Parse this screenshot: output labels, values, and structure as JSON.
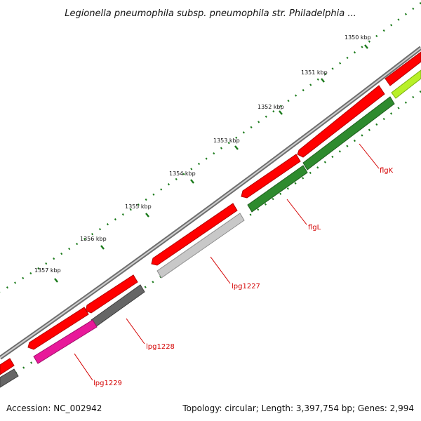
{
  "title": "Legionella pneumophila subsp. pneumophila str. Philadelphia ...",
  "footer": {
    "accession": "Accession: NC_002942",
    "summary": "Topology: circular; Length: 3,397,754 bp; Genes: 2,994"
  },
  "scale": {
    "unit": "kbp",
    "ticks": [
      "1350 kbp",
      "1351 kbp",
      "1352 kbp",
      "1353 kbp",
      "1354 kbp",
      "1355 kbp",
      "1356 kbp",
      "1357 kbp"
    ]
  },
  "genes": [
    {
      "name": "flgK",
      "track_color": "#2e8b2e"
    },
    {
      "name": "flgL",
      "track_color": "#2e8b2e"
    },
    {
      "name": "lpg1227",
      "track_color": "#c8c8c8"
    },
    {
      "name": "lpg1228",
      "track_color": "#666666"
    },
    {
      "name": "lpg1229",
      "track_color": "#e8199a"
    }
  ],
  "colors": {
    "forward_strand": "#ff0000",
    "backbone": "#8a8a8a",
    "tick": "#1a7a1a",
    "label": "#d40000"
  }
}
